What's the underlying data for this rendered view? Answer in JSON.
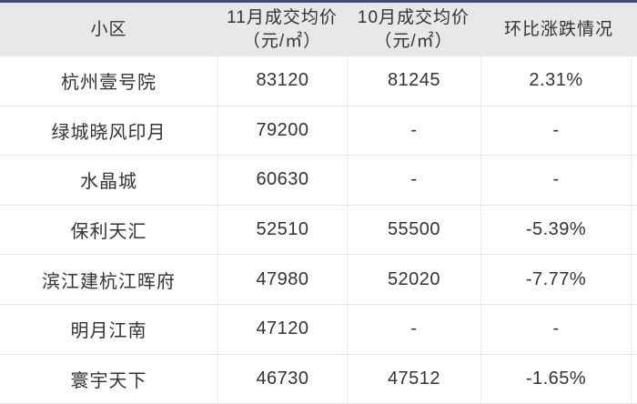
{
  "colors": {
    "top_bar": "#3d5078",
    "header_bg": "#e8e8e8",
    "row_line": "#e4e4e4",
    "column_line": "#ececec",
    "text": "#333333"
  },
  "table": {
    "columns": [
      {
        "label": "小区",
        "sub": ""
      },
      {
        "label": "11月成交均价",
        "sub": "（元/㎡）"
      },
      {
        "label": "10月成交均价",
        "sub": "（元/㎡）"
      },
      {
        "label": "环比涨跌情况",
        "sub": ""
      }
    ],
    "rows": [
      {
        "community": "杭州壹号院",
        "nov": "83120",
        "oct": "81245",
        "change": "2.31%"
      },
      {
        "community": "绿城晓风印月",
        "nov": "79200",
        "oct": "-",
        "change": "-"
      },
      {
        "community": "水晶城",
        "nov": "60630",
        "oct": "-",
        "change": "-"
      },
      {
        "community": "保利天汇",
        "nov": "52510",
        "oct": "55500",
        "change": "-5.39%"
      },
      {
        "community": "滨江建杭江晖府",
        "nov": "47980",
        "oct": "52020",
        "change": "-7.77%"
      },
      {
        "community": "明月江南",
        "nov": "47120",
        "oct": "-",
        "change": "-"
      },
      {
        "community": "寰宇天下",
        "nov": "46730",
        "oct": "47512",
        "change": "-1.65%"
      }
    ]
  },
  "chart_data": {
    "type": "table",
    "title": "",
    "columns": [
      "小区",
      "11月成交均价（元/㎡）",
      "10月成交均价（元/㎡）",
      "环比涨跌情况"
    ],
    "rows": [
      [
        "杭州壹号院",
        "83120",
        "81245",
        "2.31%"
      ],
      [
        "绿城晓风印月",
        "79200",
        "-",
        "-"
      ],
      [
        "水晶城",
        "60630",
        "-",
        "-"
      ],
      [
        "保利天汇",
        "52510",
        "55500",
        "-5.39%"
      ],
      [
        "滨江建杭江晖府",
        "47980",
        "52020",
        "-7.77%"
      ],
      [
        "明月江南",
        "47120",
        "-",
        "-"
      ],
      [
        "寰宇天下",
        "46730",
        "47512",
        "-1.65%"
      ]
    ]
  }
}
